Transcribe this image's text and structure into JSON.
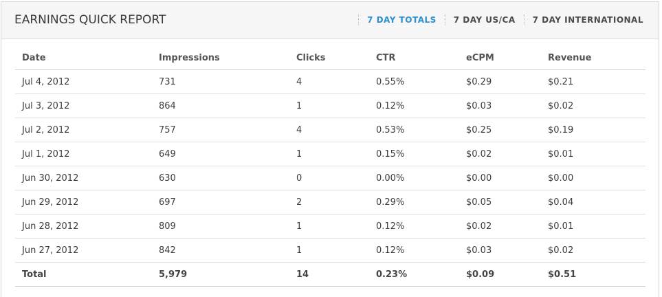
{
  "header": {
    "title": "EARNINGS QUICK REPORT",
    "tabs": [
      {
        "label": "7 DAY TOTALS",
        "active": true
      },
      {
        "label": "7 DAY US/CA",
        "active": false
      },
      {
        "label": "7 DAY INTERNATIONAL",
        "active": false
      }
    ]
  },
  "table": {
    "columns": [
      "Date",
      "Impressions",
      "Clicks",
      "CTR",
      "eCPM",
      "Revenue"
    ],
    "rows": [
      [
        "Jul 4, 2012",
        "731",
        "4",
        "0.55%",
        "$0.29",
        "$0.21"
      ],
      [
        "Jul 3, 2012",
        "864",
        "1",
        "0.12%",
        "$0.03",
        "$0.02"
      ],
      [
        "Jul 2, 2012",
        "757",
        "4",
        "0.53%",
        "$0.25",
        "$0.19"
      ],
      [
        "Jul 1, 2012",
        "649",
        "1",
        "0.15%",
        "$0.02",
        "$0.01"
      ],
      [
        "Jun 30, 2012",
        "630",
        "0",
        "0.00%",
        "$0.00",
        "$0.00"
      ],
      [
        "Jun 29, 2012",
        "697",
        "2",
        "0.29%",
        "$0.05",
        "$0.04"
      ],
      [
        "Jun 28, 2012",
        "809",
        "1",
        "0.12%",
        "$0.02",
        "$0.01"
      ],
      [
        "Jun 27, 2012",
        "842",
        "1",
        "0.12%",
        "$0.03",
        "$0.02"
      ]
    ],
    "total": [
      "Total",
      "5,979",
      "14",
      "0.23%",
      "$0.09",
      "$0.51"
    ]
  },
  "colors": {
    "accent": "#2b8fd0",
    "header_bg": "#f6f6f6"
  }
}
